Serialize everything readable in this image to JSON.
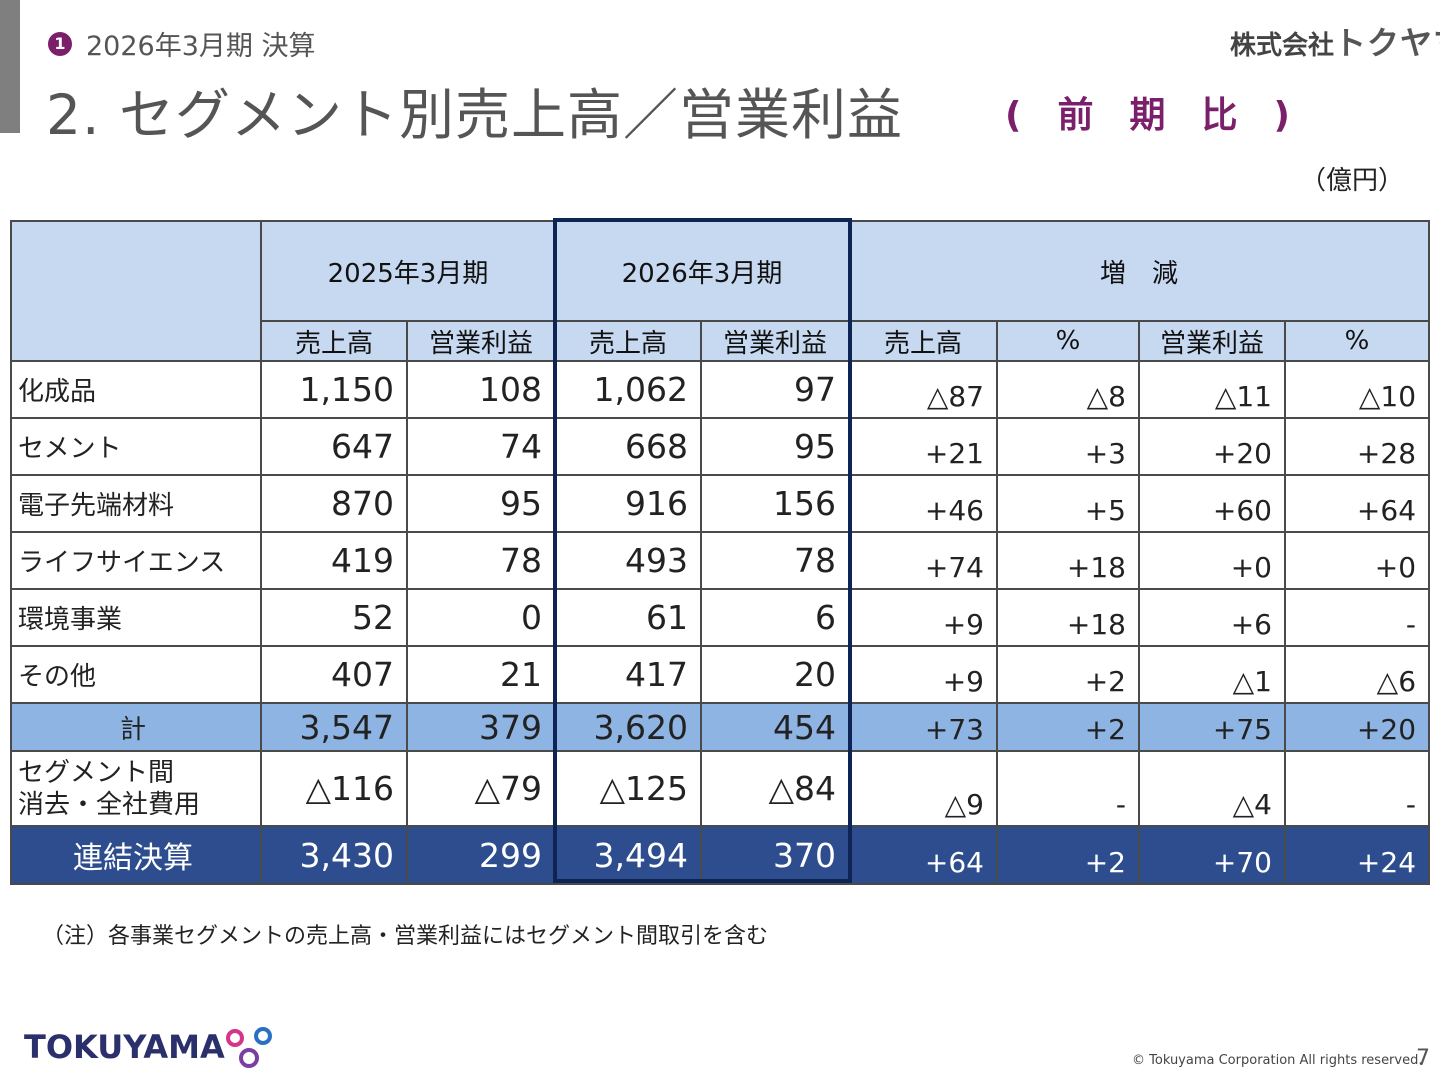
{
  "header": {
    "section_number": "1",
    "subtitle": "2026年3月期 決算",
    "title": "2. セグメント別売上高／営業利益",
    "compare": "(　前　期　比　)",
    "brand_prefix": "株式会社",
    "brand_name": "トクヤマ",
    "unit": "（億円）"
  },
  "table": {
    "group_headers": [
      "2025年3月期",
      "2026年3月期",
      "増　減"
    ],
    "sub_headers": [
      "売上高",
      "営業利益",
      "売上高",
      "営業利益",
      "売上高",
      "%",
      "営業利益",
      "%"
    ],
    "rows": [
      {
        "label": "化成品",
        "cells": [
          "1,150",
          "108",
          "1,062",
          "97",
          "△87",
          "△8",
          "△11",
          "△10"
        ]
      },
      {
        "label": "セメント",
        "cells": [
          "647",
          "74",
          "668",
          "95",
          "+21",
          "+3",
          "+20",
          "+28"
        ]
      },
      {
        "label": "電子先端材料",
        "cells": [
          "870",
          "95",
          "916",
          "156",
          "+46",
          "+5",
          "+60",
          "+64"
        ]
      },
      {
        "label": "ライフサイエンス",
        "cells": [
          "419",
          "78",
          "493",
          "78",
          "+74",
          "+18",
          "+0",
          "+0"
        ]
      },
      {
        "label": "環境事業",
        "cells": [
          "52",
          "0",
          "61",
          "6",
          "+9",
          "+18",
          "+6",
          "-"
        ]
      },
      {
        "label": "その他",
        "cells": [
          "407",
          "21",
          "417",
          "20",
          "+9",
          "+2",
          "△1",
          "△6"
        ]
      }
    ],
    "total": {
      "label": "計",
      "cells": [
        "3,547",
        "379",
        "3,620",
        "454",
        "+73",
        "+2",
        "+75",
        "+20"
      ]
    },
    "elimination": {
      "label_line1": "セグメント間",
      "label_line2": "消去・全社費用",
      "cells": [
        "△116",
        "△79",
        "△125",
        "△84",
        "△9",
        "-",
        "△4",
        "-"
      ]
    },
    "consolidated": {
      "label": "連結決算",
      "cells": [
        "3,430",
        "299",
        "3,494",
        "370",
        "+64",
        "+2",
        "+70",
        "+24"
      ]
    }
  },
  "footer": {
    "note": "（注）各事業セグメントの売上高・営業利益にはセグメント間取引を含む",
    "logo_text": "TOKUYAMA",
    "copyright": "© Tokuyama Corporation All rights reserved.",
    "page_number": "7"
  },
  "colors": {
    "accent": "#7a1f6a",
    "header_fill": "#c6d9f1",
    "total_fill": "#8db4e3",
    "consolidated_fill": "#2e4d8f",
    "highlight_border": "#0d2455"
  }
}
